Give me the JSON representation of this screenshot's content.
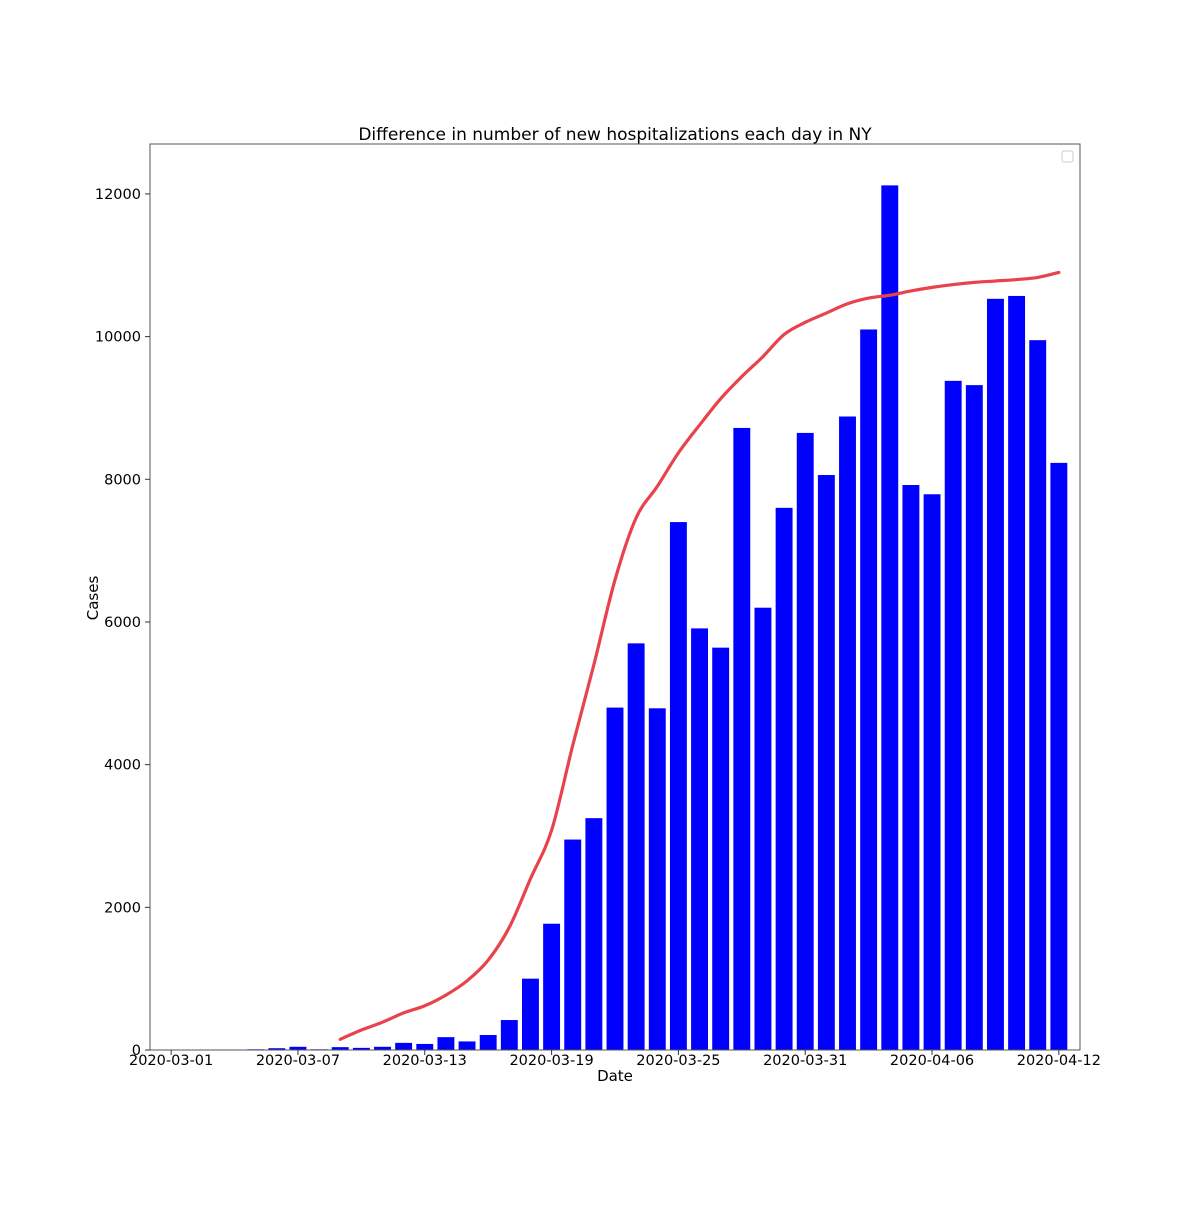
{
  "chart_data": {
    "type": "bar",
    "title": "Difference in number of new hospitalizations each day in NY",
    "xlabel": "Date",
    "ylabel": "Cases",
    "x_start": "2020-03-01",
    "x_end": "2020-04-12",
    "xlim": [
      "2020-02-29",
      "2020-04-13"
    ],
    "ylim": [
      0,
      12700
    ],
    "yticks": [
      0,
      2000,
      4000,
      6000,
      8000,
      10000,
      12000
    ],
    "xticks": [
      "2020-03-01",
      "2020-03-07",
      "2020-03-13",
      "2020-03-19",
      "2020-03-25",
      "2020-03-31",
      "2020-04-06",
      "2020-04-12"
    ],
    "grid": false,
    "legend": "top-right (empty)",
    "bar_color": "#0000ff",
    "line_color": "#e8434b",
    "categories": [
      "2020-03-01",
      "2020-03-02",
      "2020-03-03",
      "2020-03-04",
      "2020-03-05",
      "2020-03-06",
      "2020-03-07",
      "2020-03-08",
      "2020-03-09",
      "2020-03-10",
      "2020-03-11",
      "2020-03-12",
      "2020-03-13",
      "2020-03-14",
      "2020-03-15",
      "2020-03-16",
      "2020-03-17",
      "2020-03-18",
      "2020-03-19",
      "2020-03-20",
      "2020-03-21",
      "2020-03-22",
      "2020-03-23",
      "2020-03-24",
      "2020-03-25",
      "2020-03-26",
      "2020-03-27",
      "2020-03-28",
      "2020-03-29",
      "2020-03-30",
      "2020-03-31",
      "2020-04-01",
      "2020-04-02",
      "2020-04-03",
      "2020-04-04",
      "2020-04-05",
      "2020-04-06",
      "2020-04-07",
      "2020-04-08",
      "2020-04-09",
      "2020-04-10",
      "2020-04-11",
      "2020-04-12"
    ],
    "series": [
      {
        "kind": "bar",
        "values": [
          0,
          0,
          0,
          5,
          10,
          25,
          45,
          10,
          40,
          30,
          45,
          100,
          85,
          180,
          120,
          210,
          420,
          1000,
          1770,
          2950,
          3250,
          4800,
          5700,
          4790,
          7400,
          5910,
          5640,
          8720,
          6200,
          7600,
          8650,
          8060,
          8880,
          10100,
          12120,
          7920,
          7790,
          9380,
          9320,
          10530,
          10570,
          9950,
          8230
        ]
      },
      {
        "kind": "line",
        "x": [
          "2020-03-09",
          "2020-03-10",
          "2020-03-11",
          "2020-03-12",
          "2020-03-13",
          "2020-03-14",
          "2020-03-15",
          "2020-03-16",
          "2020-03-17",
          "2020-03-18",
          "2020-03-19",
          "2020-03-20",
          "2020-03-21",
          "2020-03-22",
          "2020-03-23",
          "2020-03-24",
          "2020-03-25",
          "2020-03-26",
          "2020-03-27",
          "2020-03-28",
          "2020-03-29",
          "2020-03-30",
          "2020-03-31",
          "2020-04-01",
          "2020-04-02",
          "2020-04-03",
          "2020-04-04",
          "2020-04-05",
          "2020-04-06",
          "2020-04-07",
          "2020-04-08",
          "2020-04-09",
          "2020-04-10",
          "2020-04-11",
          "2020-04-12"
        ],
        "values": [
          150,
          280,
          390,
          520,
          620,
          770,
          970,
          1260,
          1720,
          2400,
          3080,
          4270,
          5400,
          6590,
          7460,
          7900,
          8370,
          8760,
          9130,
          9440,
          9720,
          10030,
          10200,
          10330,
          10460,
          10540,
          10580,
          10640,
          10690,
          10730,
          10760,
          10780,
          10800,
          10830,
          10900
        ]
      }
    ]
  }
}
